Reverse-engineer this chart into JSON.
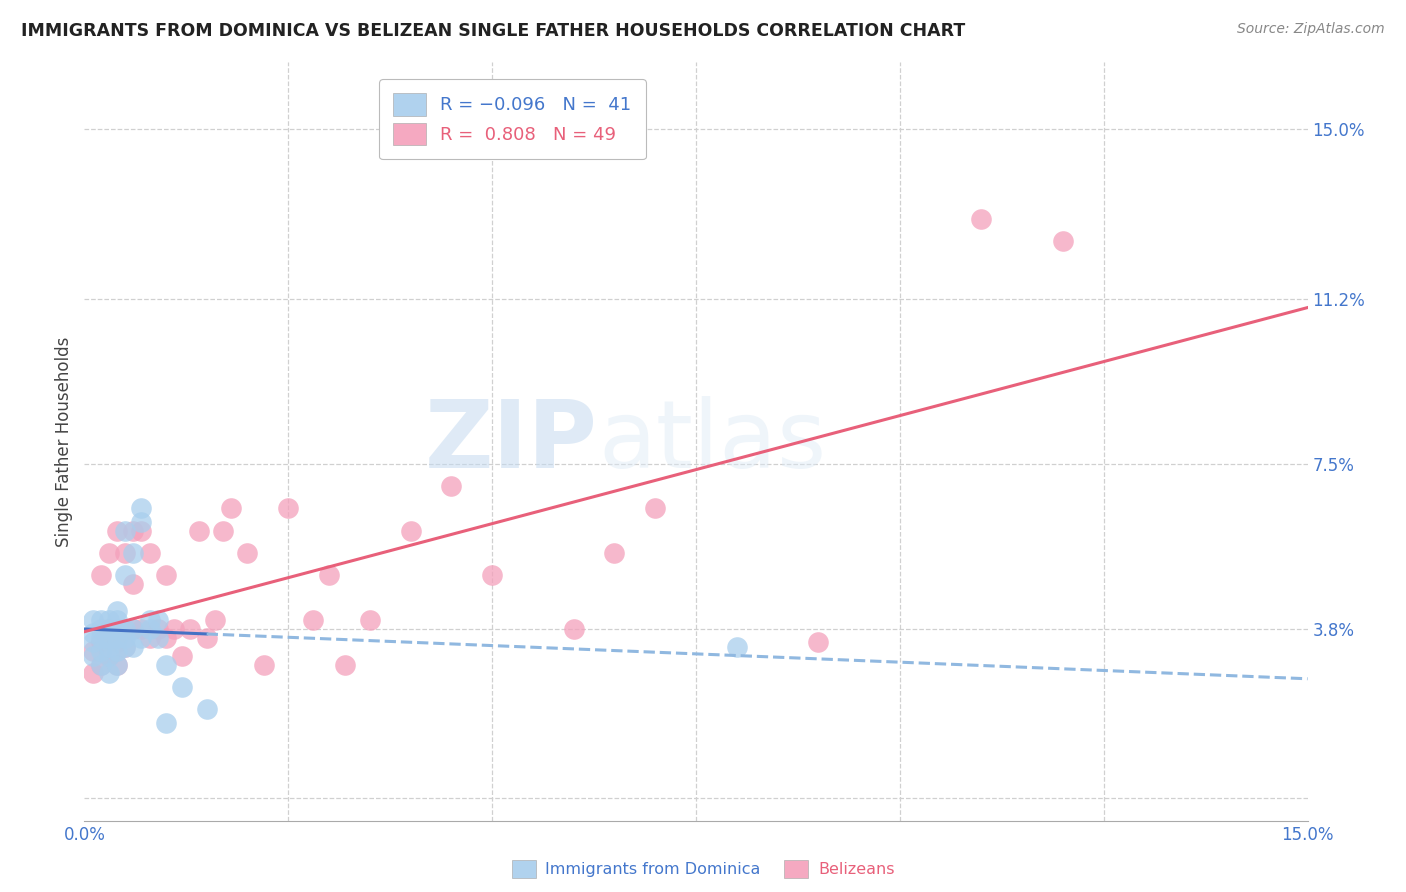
{
  "title": "IMMIGRANTS FROM DOMINICA VS BELIZEAN SINGLE FATHER HOUSEHOLDS CORRELATION CHART",
  "source": "Source: ZipAtlas.com",
  "ylabel": "Single Father Households",
  "color_blue": "#A8CEED",
  "color_pink": "#F4A0BB",
  "color_blue_line": "#4472C4",
  "color_blue_dashed": "#90B8E0",
  "color_pink_line": "#E8607A",
  "background_color": "#ffffff",
  "grid_color": "#d0d0d0",
  "blue_points_x": [
    0.001,
    0.001,
    0.001,
    0.001,
    0.002,
    0.002,
    0.002,
    0.002,
    0.002,
    0.003,
    0.003,
    0.003,
    0.003,
    0.003,
    0.003,
    0.004,
    0.004,
    0.004,
    0.004,
    0.004,
    0.004,
    0.005,
    0.005,
    0.005,
    0.005,
    0.005,
    0.006,
    0.006,
    0.006,
    0.007,
    0.007,
    0.007,
    0.008,
    0.008,
    0.009,
    0.009,
    0.01,
    0.01,
    0.012,
    0.015,
    0.08
  ],
  "blue_points_y": [
    0.032,
    0.035,
    0.037,
    0.04,
    0.03,
    0.033,
    0.036,
    0.038,
    0.04,
    0.028,
    0.032,
    0.034,
    0.036,
    0.038,
    0.04,
    0.03,
    0.033,
    0.036,
    0.038,
    0.04,
    0.042,
    0.034,
    0.036,
    0.038,
    0.05,
    0.06,
    0.034,
    0.038,
    0.055,
    0.036,
    0.062,
    0.065,
    0.038,
    0.04,
    0.036,
    0.04,
    0.03,
    0.017,
    0.025,
    0.02,
    0.034
  ],
  "pink_points_x": [
    0.001,
    0.001,
    0.002,
    0.002,
    0.002,
    0.003,
    0.003,
    0.003,
    0.003,
    0.004,
    0.004,
    0.004,
    0.005,
    0.005,
    0.005,
    0.006,
    0.006,
    0.006,
    0.007,
    0.007,
    0.008,
    0.008,
    0.009,
    0.01,
    0.01,
    0.011,
    0.012,
    0.013,
    0.014,
    0.015,
    0.016,
    0.017,
    0.018,
    0.02,
    0.022,
    0.025,
    0.028,
    0.03,
    0.032,
    0.035,
    0.04,
    0.045,
    0.05,
    0.06,
    0.065,
    0.07,
    0.09,
    0.11,
    0.12
  ],
  "pink_points_y": [
    0.028,
    0.033,
    0.03,
    0.035,
    0.05,
    0.032,
    0.036,
    0.038,
    0.055,
    0.03,
    0.035,
    0.06,
    0.034,
    0.038,
    0.055,
    0.038,
    0.048,
    0.06,
    0.038,
    0.06,
    0.036,
    0.055,
    0.038,
    0.036,
    0.05,
    0.038,
    0.032,
    0.038,
    0.06,
    0.036,
    0.04,
    0.06,
    0.065,
    0.055,
    0.03,
    0.065,
    0.04,
    0.05,
    0.03,
    0.04,
    0.06,
    0.07,
    0.05,
    0.038,
    0.055,
    0.065,
    0.035,
    0.13,
    0.125
  ]
}
